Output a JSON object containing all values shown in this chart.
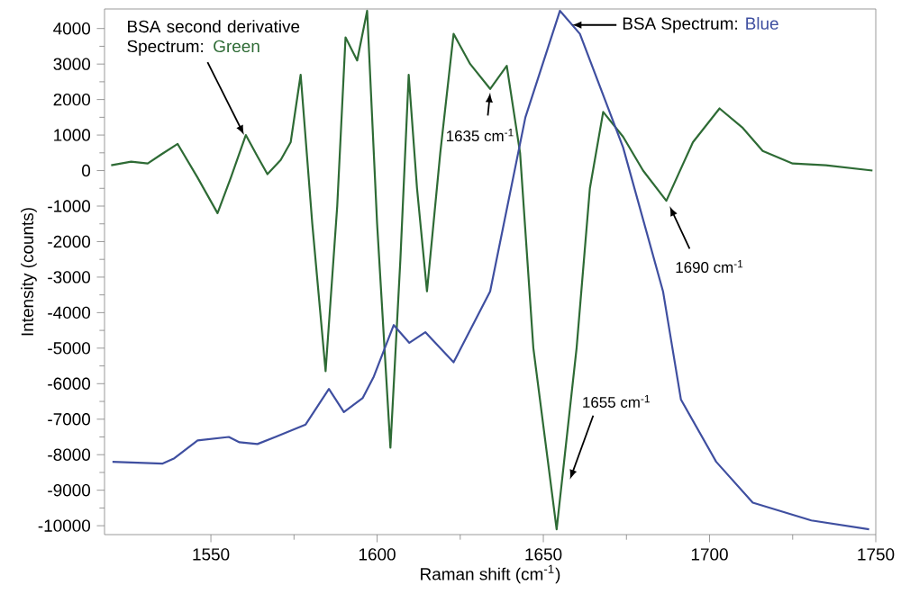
{
  "chart_data": {
    "type": "line",
    "xlabel": "Raman shift (cm$^{-1}$)",
    "ylabel": "Intensity (counts)",
    "xlim": [
      1518,
      1750
    ],
    "ylim": [
      -10250,
      4550
    ],
    "xticks": [
      1550,
      1600,
      1650,
      1700,
      1750
    ],
    "yticks": [
      -10000,
      -9000,
      -8000,
      -7000,
      -6000,
      -5000,
      -4000,
      -3000,
      -2000,
      -1000,
      0,
      1000,
      2000,
      3000,
      4000
    ],
    "series": [
      {
        "color": "#2e6b35",
        "x": [
          1520,
          1526,
          1531,
          1535,
          1540,
          1546,
          1552,
          1556,
          1560.5,
          1564,
          1567,
          1571,
          1574,
          1577,
          1580.5,
          1584.5,
          1588,
          1590.5,
          1594,
          1597,
          1600,
          1604,
          1607,
          1609.5,
          1612,
          1615,
          1619,
          1623,
          1628,
          1634,
          1639,
          1643,
          1647,
          1654,
          1660,
          1664,
          1668,
          1674,
          1680,
          1687,
          1695,
          1703,
          1710,
          1716,
          1725,
          1735,
          1749
        ],
        "values": [
          150,
          250,
          200,
          450,
          750,
          -200,
          -1200,
          -200,
          1000,
          400,
          -100,
          300,
          800,
          2700,
          -1500,
          -5650,
          -1000,
          3750,
          3100,
          4500,
          -1500,
          -7800,
          -2500,
          2700,
          -500,
          -3400,
          500,
          3850,
          3000,
          2300,
          2950,
          500,
          -5000,
          -10100,
          -5000,
          -500,
          1650,
          950,
          0,
          -850,
          800,
          1750,
          1200,
          550,
          200,
          150,
          0
        ]
      },
      {
        "color": "#3f4fa0",
        "x": [
          1520.4,
          1535.5,
          1539,
          1546,
          1555.4,
          1558.6,
          1564,
          1569.4,
          1578.5,
          1582,
          1585.5,
          1590,
          1595.7,
          1599,
          1605,
          1609.7,
          1614.5,
          1616,
          1623,
          1634,
          1644.6,
          1655,
          1661,
          1674,
          1686,
          1691.4,
          1702,
          1713,
          1730.6,
          1748
        ],
        "values": [
          -8200,
          -8250,
          -8100,
          -7600,
          -7500,
          -7650,
          -7700,
          -7500,
          -7150,
          -6650,
          -6150,
          -6800,
          -6400,
          -5800,
          -4350,
          -4850,
          -4550,
          -4700,
          -5400,
          -3400,
          1500,
          4500,
          3850,
          650,
          -3400,
          -6450,
          -8200,
          -9350,
          -9850,
          -10100
        ]
      }
    ],
    "annotations": [
      {
        "text": "BSA second derivative Spectrum:",
        "x": 1560,
        "y": 1000
      },
      "Green",
      {
        "text": "BSA Spectrum:",
        "x": 1658.5,
        "y": 4100
      },
      "Blue",
      {
        "text": "1635 cm$^{-1}$",
        "x": 1634,
        "y": 2200
      },
      {
        "text": "1690 cm$^{-1}$",
        "x": 1688,
        "y": -1000
      },
      {
        "text": "1655 cm$^{-1}$",
        "x": 1658,
        "y": -8700
      }
    ]
  }
}
